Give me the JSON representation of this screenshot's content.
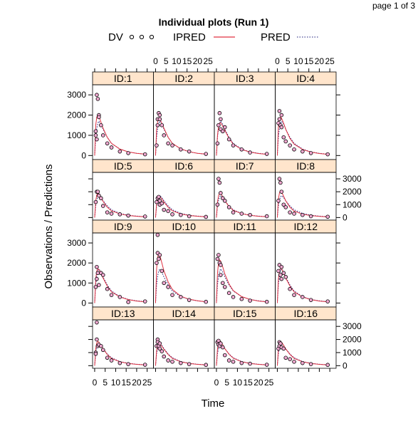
{
  "page_label": "page 1 of 3",
  "chart_data": {
    "type": "scatter",
    "title": "Individual plots (Run 1)",
    "xlabel": "Time",
    "ylabel": "Observations / Predictions",
    "xlim": [
      -1,
      28
    ],
    "ylim": [
      -200,
      3500
    ],
    "x_ticks": [
      0,
      5,
      10,
      15,
      20,
      25
    ],
    "x_tick_labels": [
      "0",
      "5",
      "10",
      "15",
      "20",
      "25"
    ],
    "y_ticks": [
      0,
      1000,
      2000,
      3000
    ],
    "y_tick_labels": [
      "0",
      "1000",
      "2000",
      "3000"
    ],
    "grid": false,
    "legend_position": "top",
    "legend": [
      {
        "label": "DV",
        "style": "points",
        "color": "#000000"
      },
      {
        "label": "IPRED",
        "style": "solid line",
        "color": "#e03040"
      },
      {
        "label": "PRED",
        "style": "dotted line",
        "color": "#1a1a7a"
      }
    ],
    "colors": {
      "strip": "#ffe5cc",
      "dv_fill": "#f0a8d0",
      "ipred": "#e03040",
      "pred": "#1a1a7a"
    },
    "pred": {
      "time": [
        0,
        0.5,
        1,
        1.5,
        2,
        3,
        4,
        6,
        8,
        12,
        16,
        20,
        24
      ],
      "values": [
        0,
        900,
        1350,
        1600,
        1700,
        1550,
        1300,
        900,
        600,
        320,
        180,
        110,
        70
      ]
    },
    "panels": [
      {
        "id": "ID:1",
        "dv": {
          "time": [
            0.5,
            0.5,
            1,
            1,
            1.5,
            2,
            2,
            3,
            4,
            6,
            8,
            12,
            16,
            24
          ],
          "values": [
            1000,
            1200,
            800,
            3000,
            2800,
            2000,
            1900,
            1500,
            1000,
            600,
            400,
            200,
            120,
            60
          ]
        },
        "ipred": [
          0,
          1500,
          1900,
          2000,
          1950,
          1650,
          1350,
          900,
          600,
          320,
          180,
          110,
          70
        ]
      },
      {
        "id": "ID:2",
        "dv": {
          "time": [
            0.5,
            1,
            1,
            1.5,
            2,
            2,
            3,
            4,
            6,
            8,
            12,
            16,
            24
          ],
          "values": [
            500,
            1800,
            1500,
            2100,
            1800,
            2000,
            1500,
            1000,
            600,
            500,
            300,
            200,
            80
          ]
        },
        "ipred": [
          0,
          1300,
          1700,
          1850,
          1800,
          1600,
          1350,
          900,
          600,
          330,
          190,
          110,
          70
        ]
      },
      {
        "id": "ID:3",
        "dv": {
          "time": [
            0.5,
            1,
            1.5,
            2,
            2,
            3,
            4,
            6,
            8,
            12,
            16,
            24
          ],
          "values": [
            600,
            1500,
            2100,
            1300,
            1800,
            1200,
            1400,
            800,
            500,
            300,
            150,
            80
          ]
        },
        "ipred": [
          0,
          1000,
          1450,
          1600,
          1620,
          1450,
          1250,
          850,
          560,
          300,
          170,
          100,
          60
        ]
      },
      {
        "id": "ID:4",
        "dv": {
          "time": [
            0.5,
            1,
            1,
            1.5,
            2,
            2,
            3,
            4,
            6,
            8,
            12,
            16,
            24
          ],
          "values": [
            1600,
            1800,
            2200,
            1500,
            2000,
            1400,
            900,
            700,
            500,
            300,
            200,
            120,
            60
          ]
        },
        "ipred": [
          0,
          1400,
          1800,
          1900,
          1850,
          1600,
          1300,
          850,
          560,
          300,
          170,
          100,
          60
        ]
      },
      {
        "id": "ID:5",
        "dv": {
          "time": [
            0.5,
            1,
            1.5,
            2,
            3,
            4,
            6,
            8,
            12,
            16,
            24
          ],
          "values": [
            1200,
            2000,
            2000,
            1700,
            1500,
            900,
            400,
            300,
            250,
            150,
            80
          ]
        },
        "ipred": [
          0,
          1300,
          1750,
          1900,
          1850,
          1550,
          1250,
          800,
          520,
          280,
          160,
          95,
          55
        ]
      },
      {
        "id": "ID:6",
        "dv": {
          "time": [
            0.5,
            1,
            1.5,
            2,
            2,
            3,
            4,
            6,
            8,
            12,
            16,
            24
          ],
          "values": [
            1200,
            1500,
            1600,
            1000,
            1300,
            1100,
            600,
            500,
            250,
            200,
            100,
            50
          ]
        },
        "ipred": [
          0,
          1100,
          1500,
          1650,
          1640,
          1450,
          1200,
          800,
          520,
          280,
          160,
          95,
          55
        ]
      },
      {
        "id": "ID:7",
        "dv": {
          "time": [
            0.5,
            1,
            1.5,
            2,
            3,
            4,
            6,
            8,
            12,
            16,
            24
          ],
          "values": [
            1000,
            3000,
            2700,
            1900,
            1500,
            1300,
            800,
            400,
            300,
            200,
            100
          ]
        },
        "ipred": [
          0,
          1200,
          1700,
          1900,
          1880,
          1600,
          1300,
          850,
          560,
          300,
          170,
          100,
          60
        ]
      },
      {
        "id": "ID:8",
        "dv": {
          "time": [
            0.5,
            1,
            1.5,
            2,
            3,
            4,
            6,
            8,
            12,
            16,
            24
          ],
          "values": [
            1300,
            3000,
            2700,
            2000,
            1000,
            800,
            400,
            300,
            200,
            100,
            60
          ]
        },
        "ipred": [
          0,
          1400,
          1900,
          2100,
          2000,
          1650,
          1300,
          800,
          500,
          260,
          150,
          90,
          50
        ]
      },
      {
        "id": "ID:9",
        "dv": {
          "time": [
            0.5,
            1,
            1,
            1.5,
            2,
            3,
            4,
            6,
            8,
            12,
            16,
            24
          ],
          "values": [
            800,
            1800,
            1200,
            1500,
            900,
            1500,
            1400,
            700,
            400,
            300,
            50,
            80
          ]
        },
        "ipred": [
          0,
          1200,
          1600,
          1700,
          1680,
          1500,
          1250,
          850,
          560,
          300,
          170,
          100,
          60
        ]
      },
      {
        "id": "ID:10",
        "dv": {
          "time": [
            0.5,
            1,
            1,
            1.5,
            2,
            3,
            4,
            6,
            8,
            12,
            16,
            24
          ],
          "values": [
            2000,
            3400,
            2500,
            2200,
            2400,
            1600,
            1000,
            800,
            400,
            300,
            150,
            60
          ]
        },
        "ipred": [
          0,
          1700,
          2300,
          2500,
          2400,
          2000,
          1600,
          1050,
          680,
          340,
          190,
          110,
          60
        ]
      },
      {
        "id": "ID:11",
        "dv": {
          "time": [
            0.5,
            1,
            1.5,
            2,
            2,
            3,
            4,
            6,
            8,
            12,
            16,
            24
          ],
          "values": [
            2200,
            2400,
            2000,
            1900,
            1400,
            1000,
            800,
            500,
            300,
            200,
            120,
            60
          ]
        },
        "ipred": [
          0,
          1500,
          2000,
          2150,
          2100,
          1800,
          1450,
          950,
          620,
          320,
          180,
          100,
          60
        ]
      },
      {
        "id": "ID:12",
        "dv": {
          "time": [
            0.5,
            1,
            1.5,
            2,
            2,
            3,
            4,
            6,
            8,
            12,
            16,
            24
          ],
          "values": [
            1600,
            1900,
            1400,
            1800,
            1200,
            1500,
            1300,
            700,
            400,
            300,
            150,
            80
          ]
        },
        "ipred": [
          0,
          1200,
          1600,
          1750,
          1720,
          1500,
          1250,
          850,
          560,
          300,
          170,
          100,
          60
        ]
      },
      {
        "id": "ID:13",
        "dv": {
          "time": [
            0.5,
            0.5,
            1,
            1,
            1.5,
            2,
            3,
            4,
            6,
            8,
            12,
            16,
            24
          ],
          "values": [
            1000,
            900,
            2000,
            3300,
            1500,
            1600,
            1500,
            1200,
            600,
            400,
            200,
            120,
            70
          ]
        },
        "ipred": [
          0,
          1300,
          1750,
          1850,
          1800,
          1550,
          1300,
          850,
          560,
          300,
          170,
          100,
          60
        ]
      },
      {
        "id": "ID:14",
        "dv": {
          "time": [
            0.5,
            1,
            1,
            1.5,
            2,
            2,
            3,
            4,
            6,
            8,
            12,
            16,
            24
          ],
          "values": [
            1500,
            2000,
            1800,
            1500,
            1700,
            1300,
            1100,
            700,
            400,
            300,
            200,
            120,
            60
          ]
        },
        "ipred": [
          0,
          1150,
          1550,
          1700,
          1680,
          1480,
          1250,
          850,
          560,
          300,
          170,
          100,
          60
        ]
      },
      {
        "id": "ID:15",
        "dv": {
          "time": [
            0.5,
            1,
            1,
            1.5,
            2,
            3,
            4,
            6,
            8,
            12,
            16,
            24
          ],
          "values": [
            1800,
            1900,
            1600,
            1500,
            1700,
            1400,
            800,
            400,
            300,
            200,
            150,
            70
          ]
        },
        "ipred": [
          0,
          1300,
          1750,
          1880,
          1850,
          1600,
          1300,
          870,
          570,
          300,
          170,
          100,
          60
        ]
      },
      {
        "id": "ID:16",
        "dv": {
          "time": [
            0.5,
            1,
            1,
            1.5,
            2,
            3,
            4,
            6,
            8,
            12,
            16,
            24
          ],
          "values": [
            1300,
            1800,
            1500,
            1700,
            1400,
            1300,
            600,
            500,
            300,
            200,
            120,
            60
          ]
        },
        "ipred": [
          0,
          1250,
          1700,
          1820,
          1800,
          1560,
          1280,
          860,
          560,
          300,
          170,
          100,
          60
        ]
      }
    ]
  }
}
